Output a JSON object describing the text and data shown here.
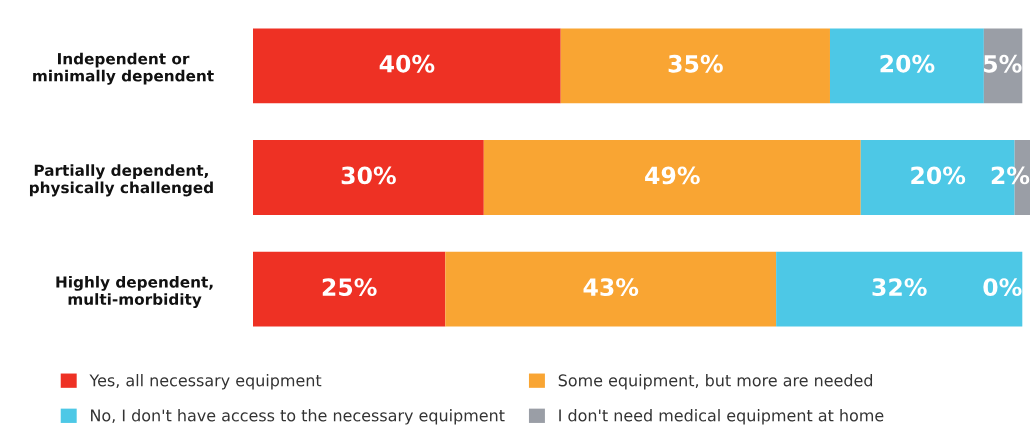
{
  "chart_data": {
    "type": "bar",
    "orientation": "horizontal",
    "stacked": true,
    "tick_labels": "y",
    "legend": "bottom",
    "grid": false,
    "categories": [
      "Independent or\nminimally dependent",
      "Partially dependent,\nphysically challenged",
      "Highly dependent,\nmulti-morbidity"
    ],
    "series": [
      {
        "name": "Yes, all necessary equipment",
        "color": "#ee3124",
        "values": [
          40,
          30,
          25
        ],
        "value_labels": [
          "40%",
          "30%",
          "25%"
        ]
      },
      {
        "name": "Some equipment, but more are needed",
        "color": "#f9a533",
        "values": [
          35,
          49,
          43
        ],
        "value_labels": [
          "35%",
          "49%",
          "43%"
        ]
      },
      {
        "name": "No, I don't have access to the necessary equipment",
        "color": "#4dc8e6",
        "values": [
          20,
          20,
          32
        ],
        "value_labels": [
          "20%",
          "20%",
          "32%"
        ]
      },
      {
        "name": "I don't need medical equipment at home",
        "color": "#9a9ea6",
        "values": [
          5,
          2,
          0
        ],
        "value_labels": [
          "5%",
          "2%",
          "0%"
        ]
      }
    ]
  }
}
